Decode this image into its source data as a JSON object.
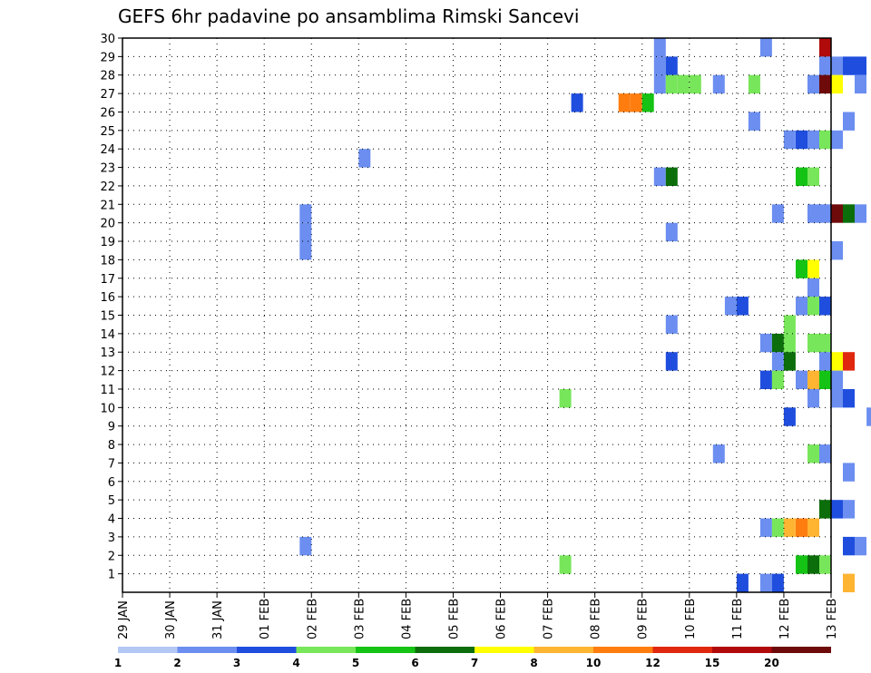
{
  "chart_data": {
    "type": "heatmap",
    "title": "GEFS 6hr padavine po ansamblima Rimski Sancevi",
    "y_tick_labels": [
      "1",
      "2",
      "3",
      "4",
      "5",
      "6",
      "7",
      "8",
      "9",
      "10",
      "11",
      "12",
      "13",
      "14",
      "15",
      "16",
      "17",
      "18",
      "19",
      "20",
      "21",
      "22",
      "23",
      "24",
      "25",
      "26",
      "27",
      "28",
      "29",
      "30"
    ],
    "ylim": [
      0,
      30
    ],
    "x_tick_labels": [
      "29 JAN",
      "30 JAN",
      "31 JAN",
      "01 FEB",
      "02 FEB",
      "03 FEB",
      "04 FEB",
      "05 FEB",
      "06 FEB",
      "07 FEB",
      "08 FEB",
      "09 FEB",
      "10 FEB",
      "11 FEB",
      "12 FEB",
      "13 FEB"
    ],
    "x_steps_per_day": 4,
    "grid": true,
    "colorbar_labels": [
      "1",
      "2",
      "3",
      "4",
      "5",
      "6",
      "7",
      "8",
      "10",
      "12",
      "15",
      "20"
    ],
    "colorbar_colors": [
      "#b4c8f5",
      "#6b8ef0",
      "#1f4ede",
      "#78e65a",
      "#14c314",
      "#0b6e0b",
      "#ffff00",
      "#ffb432",
      "#ff7d0f",
      "#e0280f",
      "#b00a0a",
      "#6e0a0a"
    ],
    "cells": [
      [
        17.5,
        29,
        2
      ],
      [
        17.5,
        28,
        2
      ],
      [
        17.5,
        27,
        1
      ],
      [
        17.5,
        26,
        1
      ],
      [
        17.5,
        25,
        3
      ],
      [
        17.5,
        24,
        1
      ],
      [
        17.5,
        23,
        1
      ],
      [
        17.5,
        22,
        2
      ],
      [
        17.5,
        21,
        1
      ],
      [
        17.5,
        20,
        1
      ],
      [
        17.5,
        19,
        1
      ],
      [
        17.5,
        18,
        1
      ],
      [
        17.5,
        17,
        1
      ],
      [
        17.5,
        16,
        1
      ],
      [
        17.5,
        15,
        1
      ],
      [
        17.5,
        14,
        1
      ],
      [
        17.5,
        13,
        1
      ],
      [
        17.5,
        12,
        1
      ],
      [
        17.5,
        11,
        1
      ],
      [
        17.5,
        10,
        1
      ],
      [
        17.5,
        9,
        1
      ],
      [
        17.5,
        8,
        1
      ],
      [
        17.5,
        7,
        1
      ],
      [
        17.5,
        6,
        1
      ],
      [
        17.5,
        5,
        1
      ],
      [
        17.5,
        4,
        1
      ],
      [
        17.5,
        3,
        1
      ],
      [
        17.5,
        2,
        1
      ],
      [
        17.5,
        1,
        1
      ],
      [
        17.5,
        0,
        2
      ],
      [
        18.5,
        29,
        1
      ],
      [
        18.5,
        28,
        2
      ],
      [
        18.5,
        27,
        2
      ],
      [
        18.5,
        26,
        2
      ],
      [
        18.5,
        25,
        1
      ],
      [
        18.5,
        24,
        1
      ],
      [
        18.5,
        23,
        1
      ],
      [
        18.5,
        22,
        2
      ],
      [
        18.5,
        21,
        1
      ],
      [
        18.5,
        20,
        1
      ],
      [
        18.5,
        19,
        1
      ],
      [
        18.5,
        18,
        1
      ],
      [
        18.5,
        17,
        1
      ],
      [
        18.5,
        16,
        1
      ],
      [
        18.5,
        15,
        1
      ],
      [
        18.5,
        14,
        1
      ],
      [
        18.5,
        13,
        1
      ],
      [
        18.5,
        12,
        1
      ],
      [
        18.5,
        11,
        1
      ],
      [
        18.5,
        10,
        1
      ],
      [
        18.5,
        9,
        1
      ],
      [
        18.5,
        8,
        1
      ],
      [
        18.5,
        7,
        1
      ],
      [
        18.5,
        6,
        1
      ],
      [
        18.5,
        5,
        1
      ],
      [
        18.5,
        4,
        1
      ],
      [
        18.5,
        3,
        1
      ],
      [
        18.5,
        2,
        1
      ],
      [
        18.5,
        1,
        1
      ]
    ],
    "cells_note": ""
  }
}
